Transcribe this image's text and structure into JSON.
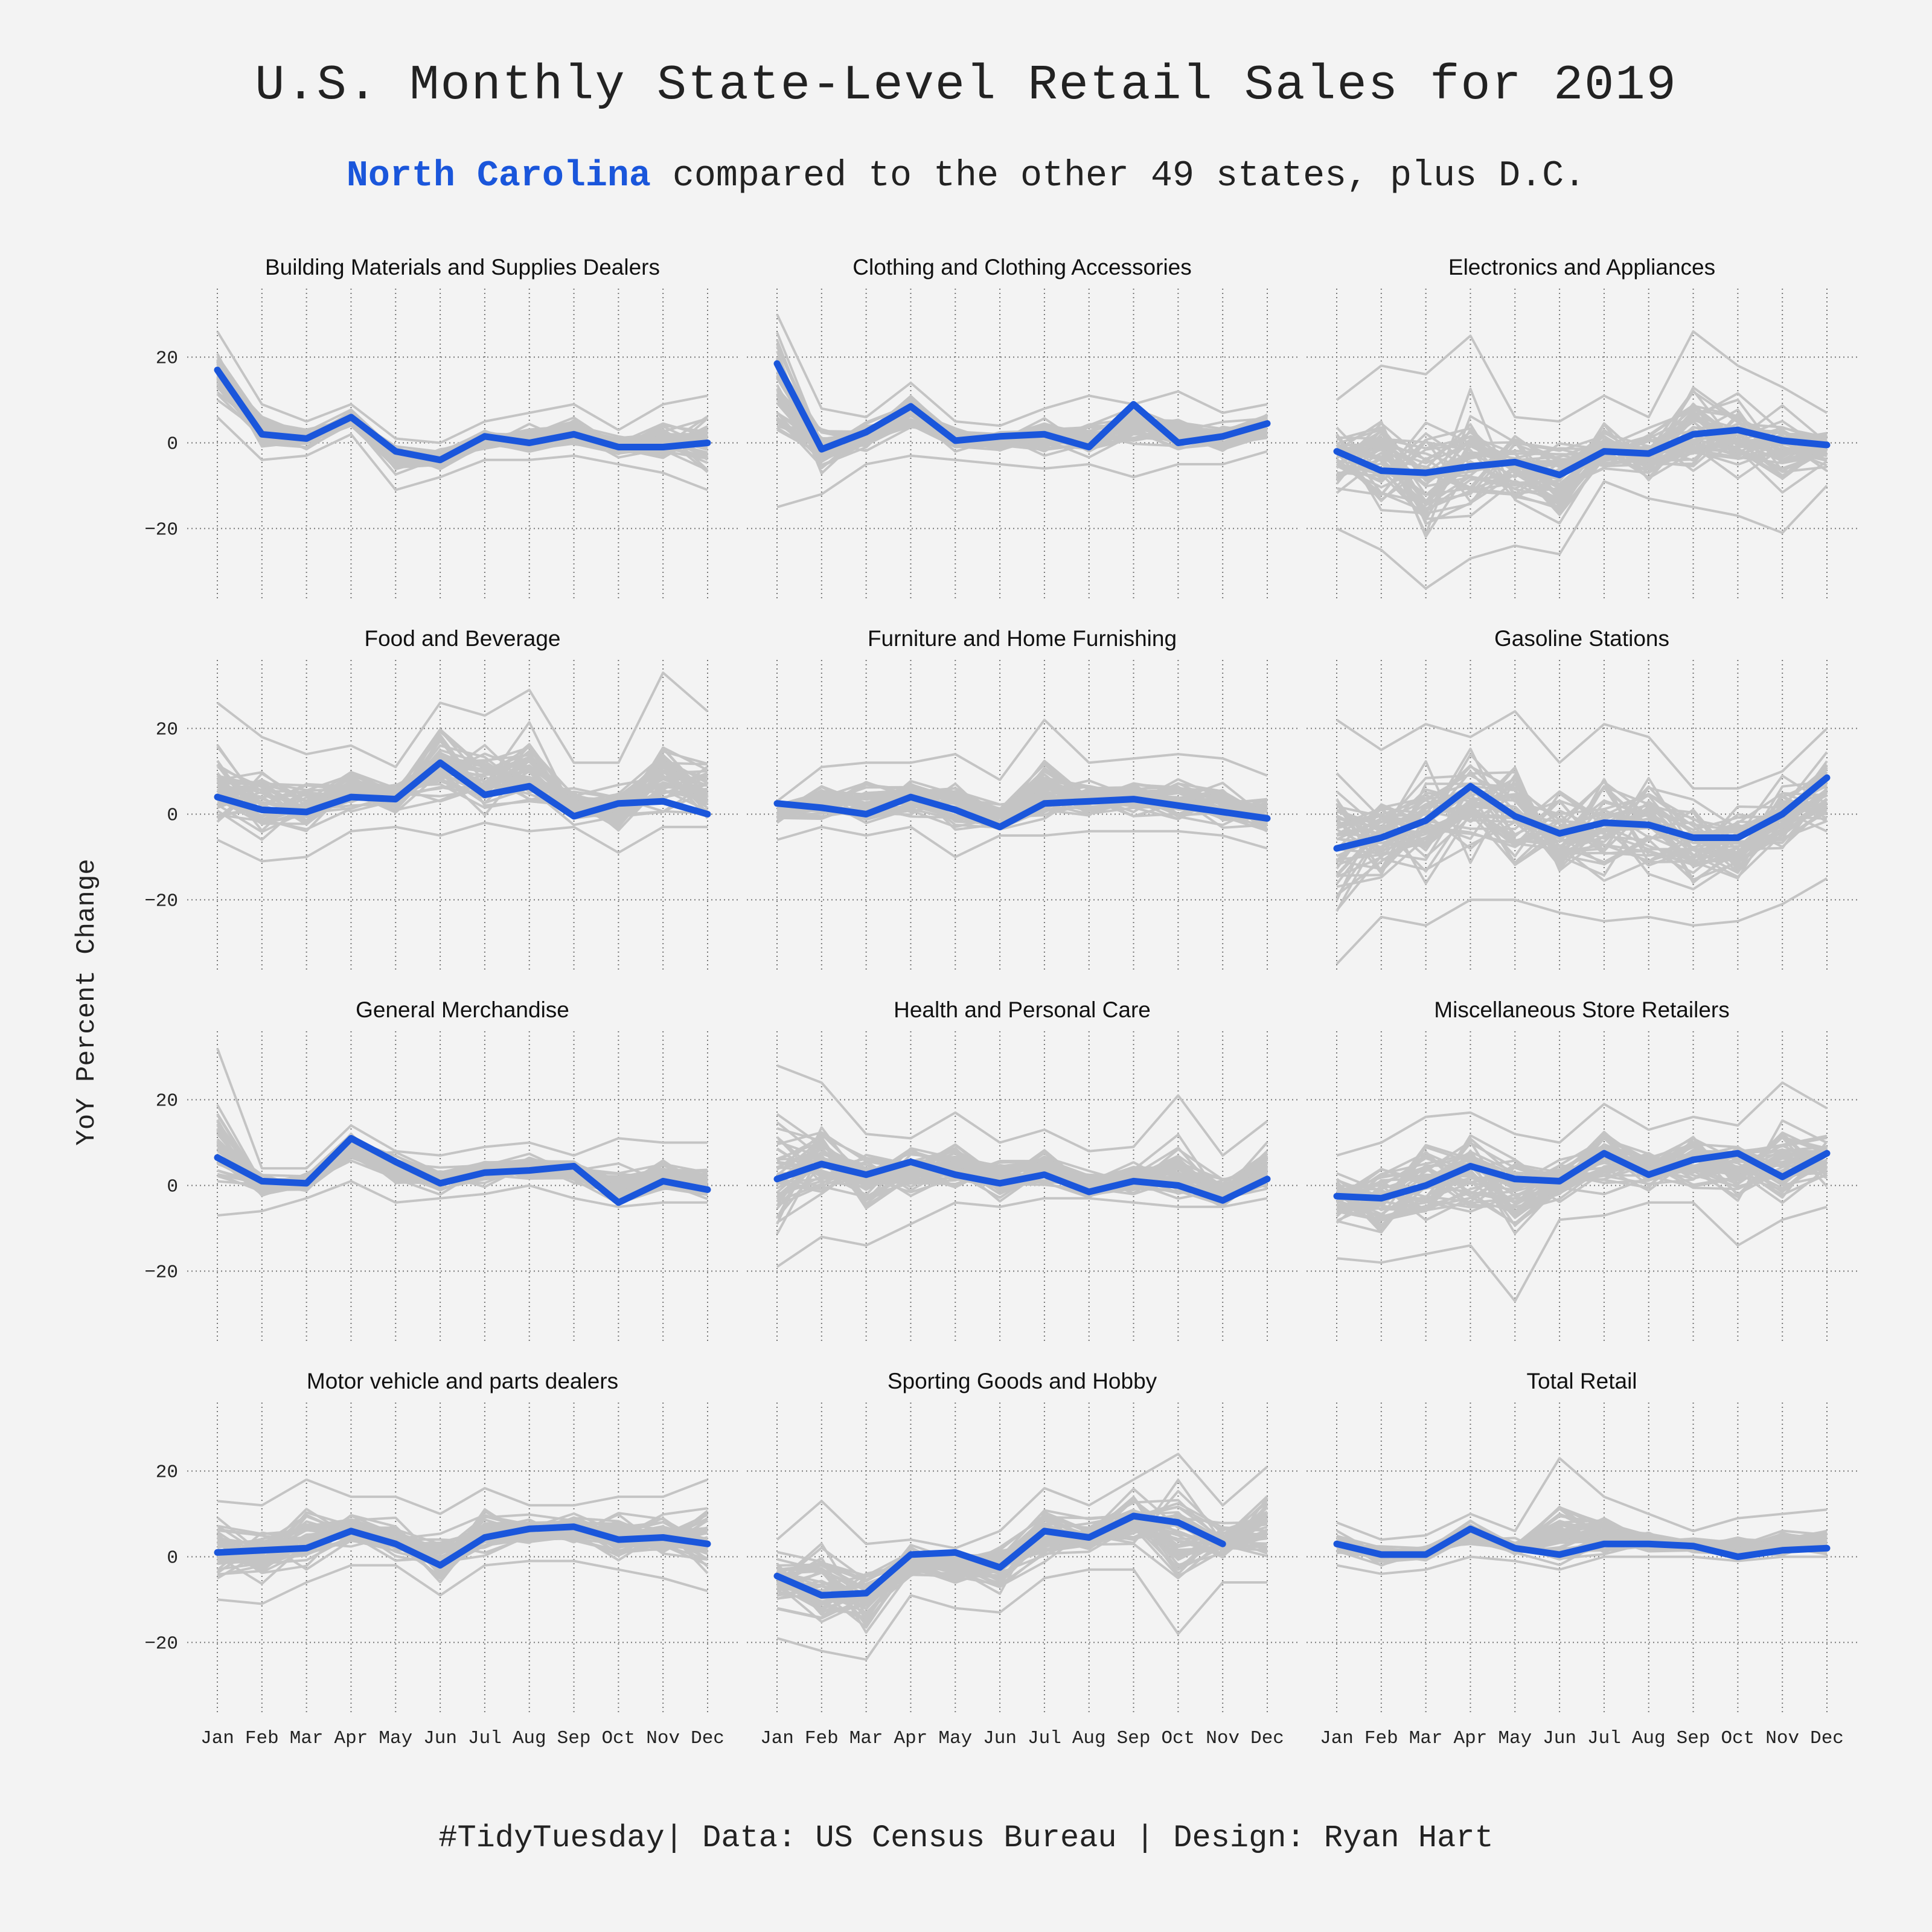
{
  "title": "U.S. Monthly State-Level Retail Sales for 2019",
  "subtitle": {
    "highlight": "North Carolina",
    "rest": " compared to the other 49 states, plus D.C."
  },
  "caption": "#TidyTuesday| Data: US Census Bureau | Design: Ryan Hart",
  "colors": {
    "background": "#f3f3f3",
    "highlight": "#1a56db",
    "others": "#c4c4c4",
    "grid": "#777777"
  },
  "chart_data": {
    "type": "line",
    "layout": "facet-grid-4x3",
    "ylabel": "YoY Percent Change",
    "ylim": [
      -37,
      36
    ],
    "yticks": [
      -20,
      0,
      20
    ],
    "x": [
      "Jan",
      "Feb",
      "Mar",
      "Apr",
      "May",
      "Jun",
      "Jul",
      "Aug",
      "Sep",
      "Oct",
      "Nov",
      "Dec"
    ],
    "highlight_series": "North Carolina",
    "other_series_count": 50,
    "facets": [
      {
        "name": "Building Materials and Supplies Dealers",
        "north_carolina": [
          17,
          2,
          1,
          6,
          -2,
          -4,
          1.5,
          0,
          2,
          -1,
          -1,
          0
        ],
        "others_range": [
          [
            6,
            26
          ],
          [
            -4,
            9
          ],
          [
            -3,
            5
          ],
          [
            2,
            9
          ],
          [
            -11,
            1
          ],
          [
            -8,
            0
          ],
          [
            -4,
            5
          ],
          [
            -4,
            7
          ],
          [
            -3,
            9
          ],
          [
            -5,
            3
          ],
          [
            -7,
            9
          ],
          [
            -11,
            11
          ]
        ]
      },
      {
        "name": "Clothing and Clothing Accessories",
        "north_carolina": [
          18.5,
          -1.5,
          2.5,
          8.5,
          0.5,
          1.5,
          2,
          -1,
          9,
          0,
          1.5,
          4.5
        ],
        "others_range": [
          [
            -15,
            30
          ],
          [
            -12,
            8
          ],
          [
            -5,
            6
          ],
          [
            -3,
            14
          ],
          [
            -4,
            5
          ],
          [
            -5,
            4
          ],
          [
            -6,
            8
          ],
          [
            -5,
            11
          ],
          [
            -8,
            9
          ],
          [
            -5,
            12
          ],
          [
            -5,
            7
          ],
          [
            -2,
            9
          ]
        ]
      },
      {
        "name": "Electronics and Appliances",
        "north_carolina": [
          -2,
          -6.5,
          -7,
          -5.5,
          -4.5,
          -7.5,
          -2,
          -2.5,
          2,
          3,
          0.5,
          -0.5
        ],
        "others_range": [
          [
            -20,
            10
          ],
          [
            -25,
            18
          ],
          [
            -34,
            16
          ],
          [
            -27,
            25
          ],
          [
            -24,
            6
          ],
          [
            -26,
            5
          ],
          [
            -9,
            11
          ],
          [
            -13,
            6
          ],
          [
            -15,
            26
          ],
          [
            -17,
            18
          ],
          [
            -21,
            13
          ],
          [
            -10,
            7
          ]
        ]
      },
      {
        "name": "Food and Beverage",
        "north_carolina": [
          4,
          1,
          0.5,
          4,
          3.5,
          12,
          4.5,
          6.5,
          -0.5,
          2.5,
          3,
          0
        ],
        "others_range": [
          [
            -6,
            26
          ],
          [
            -11,
            18
          ],
          [
            -10,
            14
          ],
          [
            -4,
            16
          ],
          [
            -3,
            11
          ],
          [
            -5,
            26
          ],
          [
            -2,
            23
          ],
          [
            -4,
            29
          ],
          [
            -3,
            12
          ],
          [
            -9,
            12
          ],
          [
            -3,
            33
          ],
          [
            -3,
            24
          ]
        ]
      },
      {
        "name": "Furniture and Home Furnishing",
        "north_carolina": [
          2.5,
          1.5,
          0,
          4,
          1,
          -3,
          2.5,
          3,
          3.5,
          2,
          0.5,
          -1
        ],
        "others_range": [
          [
            -6,
            3
          ],
          [
            -3,
            11
          ],
          [
            -5,
            12
          ],
          [
            -3,
            12
          ],
          [
            -10,
            14
          ],
          [
            -5,
            8
          ],
          [
            -5,
            22
          ],
          [
            -4,
            12
          ],
          [
            -4,
            13
          ],
          [
            -4,
            14
          ],
          [
            -5,
            13
          ],
          [
            -8,
            9
          ]
        ]
      },
      {
        "name": "Gasoline Stations",
        "north_carolina": [
          -8,
          -5.5,
          -1.5,
          6.5,
          -0.5,
          -4.5,
          -2,
          -2.5,
          -5.5,
          -5.5,
          0,
          8.5
        ],
        "others_range": [
          [
            -35,
            22
          ],
          [
            -24,
            15
          ],
          [
            -26,
            21
          ],
          [
            -20,
            18
          ],
          [
            -20,
            24
          ],
          [
            -23,
            12
          ],
          [
            -25,
            21
          ],
          [
            -24,
            18
          ],
          [
            -26,
            6
          ],
          [
            -25,
            6
          ],
          [
            -21,
            10
          ],
          [
            -15,
            20
          ]
        ]
      },
      {
        "name": "General Merchandise",
        "north_carolina": [
          6.5,
          1,
          0.5,
          11,
          5.5,
          0.5,
          3,
          3.5,
          4.5,
          -4,
          1,
          -1
        ],
        "others_range": [
          [
            -7,
            32
          ],
          [
            -6,
            4
          ],
          [
            -3,
            4
          ],
          [
            1,
            14
          ],
          [
            -4,
            8
          ],
          [
            -3,
            7
          ],
          [
            -2,
            9
          ],
          [
            0,
            10
          ],
          [
            -3,
            7
          ],
          [
            -5,
            11
          ],
          [
            -4,
            10
          ],
          [
            -4,
            10
          ]
        ]
      },
      {
        "name": "Health and Personal Care",
        "north_carolina": [
          1.5,
          5,
          2.5,
          5.5,
          2.5,
          0.5,
          2.5,
          -1.5,
          1,
          0,
          -3.5,
          1.5
        ],
        "others_range": [
          [
            -19,
            28
          ],
          [
            -12,
            24
          ],
          [
            -14,
            12
          ],
          [
            -9,
            11
          ],
          [
            -4,
            17
          ],
          [
            -5,
            10
          ],
          [
            -3,
            13
          ],
          [
            -3,
            8
          ],
          [
            -4,
            9
          ],
          [
            -5,
            21
          ],
          [
            -5,
            7
          ],
          [
            -3,
            15
          ]
        ]
      },
      {
        "name": "Miscellaneous Store Retailers",
        "north_carolina": [
          -2.5,
          -3,
          0,
          4.5,
          1.5,
          1,
          7.5,
          2.5,
          6,
          7.5,
          2,
          7.5
        ],
        "others_range": [
          [
            -17,
            7
          ],
          [
            -18,
            10
          ],
          [
            -16,
            16
          ],
          [
            -14,
            17
          ],
          [
            -27,
            12
          ],
          [
            -8,
            10
          ],
          [
            -7,
            19
          ],
          [
            -4,
            13
          ],
          [
            -4,
            16
          ],
          [
            -14,
            14
          ],
          [
            -8,
            24
          ],
          [
            -5,
            18
          ]
        ]
      },
      {
        "name": "Motor vehicle and parts dealers",
        "north_carolina": [
          1,
          1.5,
          2,
          6,
          3,
          -2,
          4.5,
          6.5,
          7,
          4,
          4.5,
          3
        ],
        "others_range": [
          [
            -10,
            13
          ],
          [
            -11,
            12
          ],
          [
            -6,
            18
          ],
          [
            -2,
            14
          ],
          [
            -2,
            14
          ],
          [
            -9,
            10
          ],
          [
            -2,
            16
          ],
          [
            -1,
            12
          ],
          [
            -1,
            12
          ],
          [
            -3,
            14
          ],
          [
            -5,
            14
          ],
          [
            -8,
            18
          ]
        ]
      },
      {
        "name": "Sporting Goods and Hobby",
        "north_carolina": [
          -4.5,
          -9,
          -8.5,
          0.5,
          1,
          -2.5,
          6,
          4.5,
          9.5,
          8,
          3,
          null
        ],
        "others_range": [
          [
            -19,
            4
          ],
          [
            -22,
            13
          ],
          [
            -24,
            3
          ],
          [
            -9,
            4
          ],
          [
            -12,
            2
          ],
          [
            -13,
            6
          ],
          [
            -5,
            16
          ],
          [
            -3,
            12
          ],
          [
            -3,
            18
          ],
          [
            -18,
            24
          ],
          [
            -6,
            12
          ],
          [
            -6,
            21
          ]
        ]
      },
      {
        "name": "Total Retail",
        "north_carolina": [
          3,
          0.5,
          0.5,
          6.5,
          2,
          0.5,
          3,
          3,
          2.5,
          0,
          1.5,
          2
        ],
        "others_range": [
          [
            -2,
            8
          ],
          [
            -4,
            4
          ],
          [
            -3,
            5
          ],
          [
            0,
            10
          ],
          [
            -1,
            6
          ],
          [
            -3,
            23
          ],
          [
            0,
            14
          ],
          [
            0,
            10
          ],
          [
            0,
            6
          ],
          [
            -1,
            9
          ],
          [
            0,
            10
          ],
          [
            0,
            11
          ]
        ]
      }
    ]
  }
}
